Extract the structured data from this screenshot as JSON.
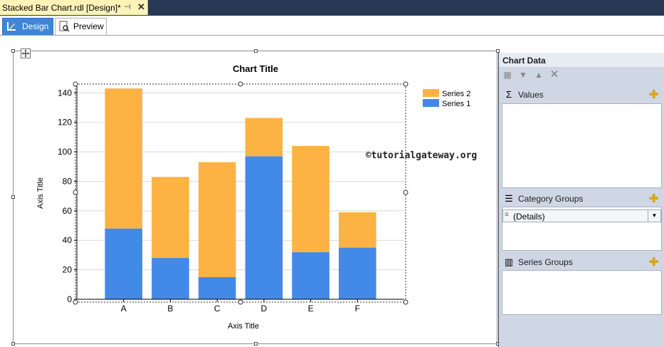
{
  "document_tab": {
    "title": "Stacked Bar Chart.rdl [Design]*",
    "pin": "⊣",
    "close": "✕"
  },
  "view_tabs": {
    "design": "Design",
    "preview": "Preview"
  },
  "chart_data_pane": {
    "title": "Chart Data",
    "values_label": "Values",
    "category_groups_label": "Category Groups",
    "category_group_item": "(Details)",
    "series_groups_label": "Series Groups"
  },
  "watermark": "©tutorialgateway.org",
  "colors": {
    "series1": "#4389e8",
    "series2": "#fdb244",
    "accent": "#3e86d6"
  },
  "chart_data": {
    "type": "bar",
    "stacked": true,
    "title": "Chart Title",
    "xlabel": "Axis Title",
    "ylabel": "Axis Title",
    "categories": [
      "A",
      "B",
      "C",
      "D",
      "E",
      "F"
    ],
    "series": [
      {
        "name": "Series 1",
        "values": [
          48,
          28,
          15,
          97,
          32,
          35
        ]
      },
      {
        "name": "Series 2",
        "values": [
          95,
          55,
          78,
          26,
          72,
          24
        ]
      }
    ],
    "yticks": [
      "0",
      "20",
      "40",
      "60",
      "80",
      "100",
      "120",
      "140"
    ],
    "ylim": [
      0,
      145
    ],
    "grid": true,
    "legend_position": "top-right"
  }
}
